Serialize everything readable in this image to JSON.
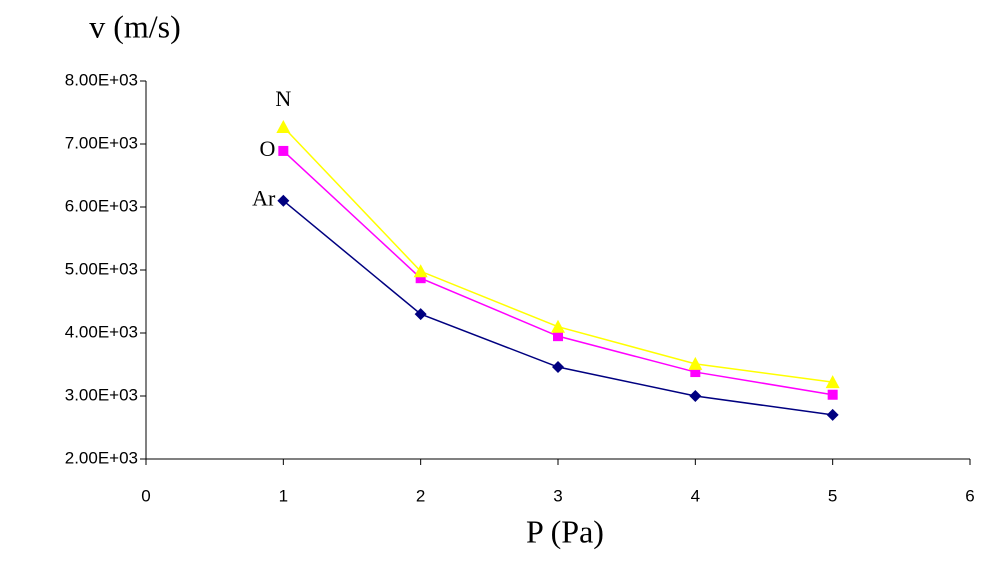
{
  "chart_data": {
    "type": "line",
    "y_label": "v (m/s)",
    "x_label": "P (Pa)",
    "series": [
      {
        "name": "Ar",
        "color": "#000080",
        "marker": "diamond",
        "x": [
          1,
          2,
          3,
          4,
          5
        ],
        "values": [
          6100,
          4300,
          3460,
          3000,
          2700
        ]
      },
      {
        "name": "O",
        "color": "#ff00ff",
        "marker": "square",
        "x": [
          1,
          2,
          3,
          4,
          5
        ],
        "values": [
          6890,
          4870,
          3950,
          3380,
          3020
        ]
      },
      {
        "name": "N",
        "color": "#ffff00",
        "marker": "triangle",
        "x": [
          1,
          2,
          3,
          4,
          5
        ],
        "values": [
          7270,
          4980,
          4100,
          3510,
          3220
        ]
      }
    ],
    "xlim": [
      0,
      6
    ],
    "xticks": [
      0,
      1,
      2,
      3,
      4,
      5,
      6
    ],
    "ylim": [
      2000,
      8000
    ],
    "yticks": [
      {
        "value": 2000,
        "label": "2.00E+03"
      },
      {
        "value": 3000,
        "label": "3.00E+03"
      },
      {
        "value": 4000,
        "label": "4.00E+03"
      },
      {
        "value": 5000,
        "label": "5.00E+03"
      },
      {
        "value": 6000,
        "label": "6.00E+03"
      },
      {
        "value": 7000,
        "label": "7.00E+03"
      },
      {
        "value": 8000,
        "label": "8.00E+03"
      }
    ],
    "grid": false
  }
}
